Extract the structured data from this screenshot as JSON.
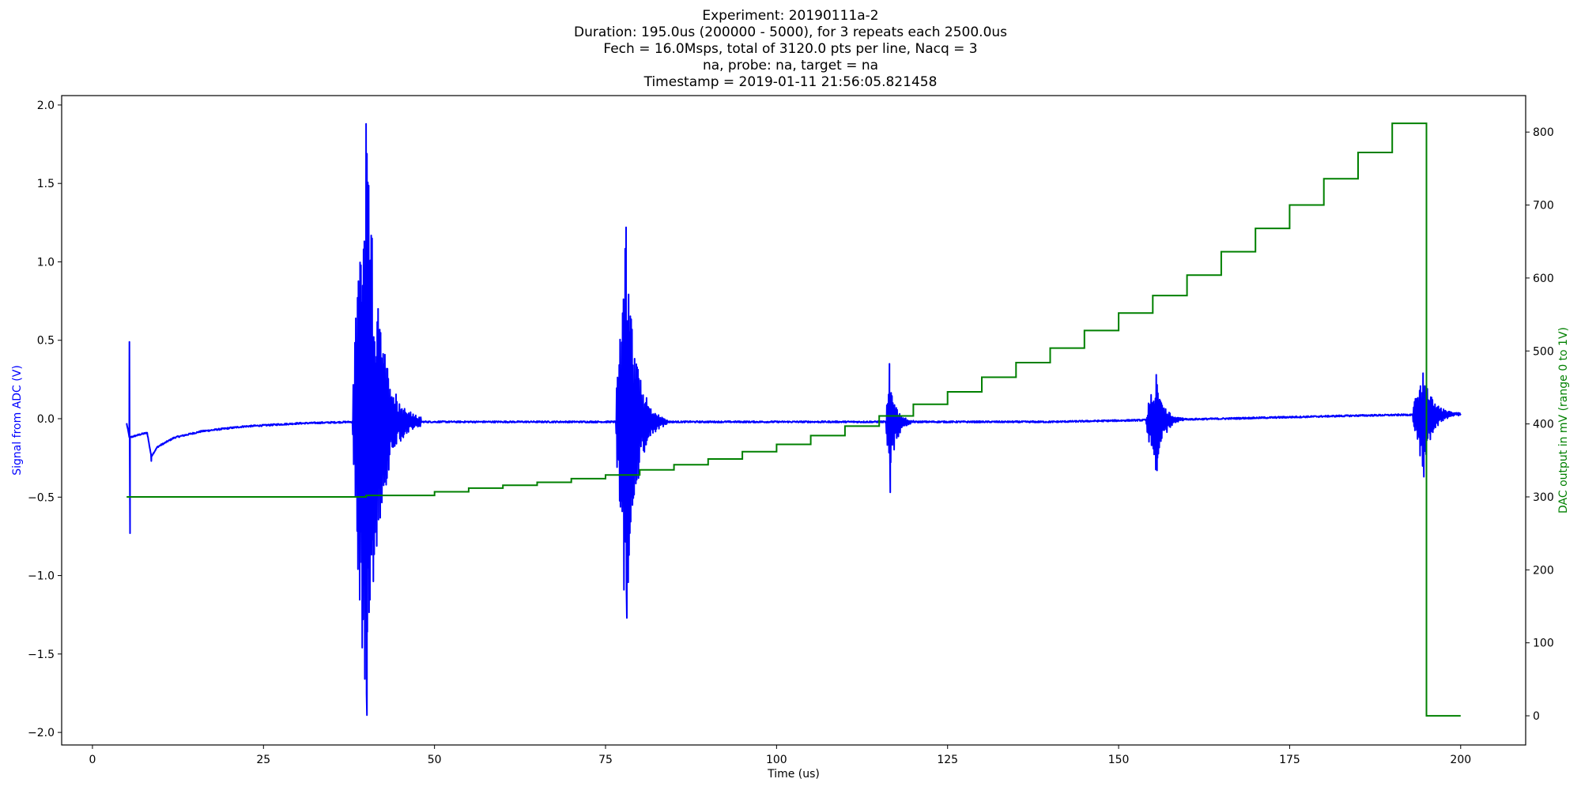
{
  "title_lines": [
    "Experiment: 20190111a-2",
    "Duration: 195.0us (200000 - 5000), for 3 repeats each 2500.0us",
    "Fech = 16.0Msps, total of 3120.0 pts per line, Nacq = 3",
    "na, probe: na, target = na",
    "Timestamp = 2019-01-11 21:56:05.821458"
  ],
  "colors": {
    "signal": "#0000ff",
    "dac": "#008000",
    "axes": "#000000",
    "background": "#ffffff"
  },
  "chart_data": {
    "type": "line",
    "xlabel": "Time (us)",
    "ylabel_left": "Signal from ADC (V)",
    "ylabel_right": "DAC output in mV (range 0 to 1V)",
    "xlim": [
      -4.5,
      209.5
    ],
    "ylim_left": [
      -2.08,
      2.06
    ],
    "ylim_right": [
      -40,
      850
    ],
    "x_ticks": [
      0,
      25,
      50,
      75,
      100,
      125,
      150,
      175,
      200
    ],
    "y_left_ticks": [
      -2.0,
      -1.5,
      -1.0,
      -0.5,
      0.0,
      0.5,
      1.0,
      1.5,
      2.0
    ],
    "y_right_ticks": [
      0,
      100,
      200,
      300,
      400,
      500,
      600,
      700,
      800
    ],
    "grid": false,
    "series": [
      {
        "name": "",
        "axis": "left",
        "kind": "noisy_signal",
        "x_start": 5.0,
        "x_end": 200.0,
        "baseline": [
          [
            5.0,
            -0.03
          ],
          [
            5.4,
            -0.12
          ],
          [
            7.0,
            -0.1
          ],
          [
            8.0,
            -0.09
          ],
          [
            8.6,
            -0.24
          ],
          [
            9.5,
            -0.18
          ],
          [
            12.0,
            -0.12
          ],
          [
            16.0,
            -0.08
          ],
          [
            22.0,
            -0.05
          ],
          [
            30.0,
            -0.03
          ],
          [
            38.0,
            -0.02
          ],
          [
            60.0,
            -0.02
          ],
          [
            110.0,
            -0.02
          ],
          [
            140.0,
            -0.02
          ],
          [
            165.0,
            0.0
          ],
          [
            185.0,
            0.02
          ],
          [
            200.0,
            0.03
          ]
        ],
        "noise_floor": 0.005,
        "spikes": [
          {
            "x": 5.4,
            "y": 0.49
          },
          {
            "x": 5.5,
            "y": -0.73
          },
          {
            "x": 8.6,
            "y": -0.27
          }
        ],
        "bursts": [
          {
            "start": 38.0,
            "peak": 40.0,
            "end": 48.0,
            "max": 1.88,
            "min": -1.89
          },
          {
            "start": 76.5,
            "peak": 78.0,
            "end": 84.0,
            "max": 1.22,
            "min": -1.27
          },
          {
            "start": 116.0,
            "peak": 116.5,
            "end": 120.0,
            "max": 0.35,
            "min": -0.47
          },
          {
            "start": 154.0,
            "peak": 155.5,
            "end": 160.0,
            "max": 0.28,
            "min": -0.33
          },
          {
            "start": 193.0,
            "peak": 194.5,
            "end": 200.0,
            "max": 0.29,
            "min": -0.37
          }
        ]
      },
      {
        "name": "",
        "axis": "right",
        "kind": "step",
        "points": [
          [
            5.0,
            300
          ],
          [
            40.0,
            300
          ],
          [
            40.0,
            302
          ],
          [
            50.0,
            302
          ],
          [
            50.0,
            307
          ],
          [
            55.0,
            307
          ],
          [
            55.0,
            312
          ],
          [
            60.0,
            312
          ],
          [
            60.0,
            316
          ],
          [
            65.0,
            316
          ],
          [
            65.0,
            320
          ],
          [
            70.0,
            320
          ],
          [
            70.0,
            325
          ],
          [
            75.0,
            325
          ],
          [
            75.0,
            330
          ],
          [
            80.0,
            330
          ],
          [
            80.0,
            337
          ],
          [
            85.0,
            337
          ],
          [
            85.0,
            344
          ],
          [
            90.0,
            344
          ],
          [
            90.0,
            352
          ],
          [
            95.0,
            352
          ],
          [
            95.0,
            362
          ],
          [
            100.0,
            362
          ],
          [
            100.0,
            372
          ],
          [
            105.0,
            372
          ],
          [
            105.0,
            384
          ],
          [
            110.0,
            384
          ],
          [
            110.0,
            397
          ],
          [
            115.0,
            397
          ],
          [
            115.0,
            411
          ],
          [
            120.0,
            411
          ],
          [
            120.0,
            427
          ],
          [
            125.0,
            427
          ],
          [
            125.0,
            444
          ],
          [
            130.0,
            444
          ],
          [
            130.0,
            464
          ],
          [
            135.0,
            464
          ],
          [
            135.0,
            484
          ],
          [
            140.0,
            484
          ],
          [
            140.0,
            504
          ],
          [
            145.0,
            504
          ],
          [
            145.0,
            528
          ],
          [
            150.0,
            528
          ],
          [
            150.0,
            552
          ],
          [
            155.0,
            552
          ],
          [
            155.0,
            576
          ],
          [
            160.0,
            576
          ],
          [
            160.0,
            604
          ],
          [
            165.0,
            604
          ],
          [
            165.0,
            636
          ],
          [
            170.0,
            636
          ],
          [
            170.0,
            668
          ],
          [
            175.0,
            668
          ],
          [
            175.0,
            700
          ],
          [
            180.0,
            700
          ],
          [
            180.0,
            736
          ],
          [
            185.0,
            736
          ],
          [
            185.0,
            772
          ],
          [
            190.0,
            772
          ],
          [
            190.0,
            812
          ],
          [
            195.0,
            812
          ],
          [
            195.0,
            0
          ],
          [
            200.0,
            0
          ]
        ]
      }
    ]
  }
}
